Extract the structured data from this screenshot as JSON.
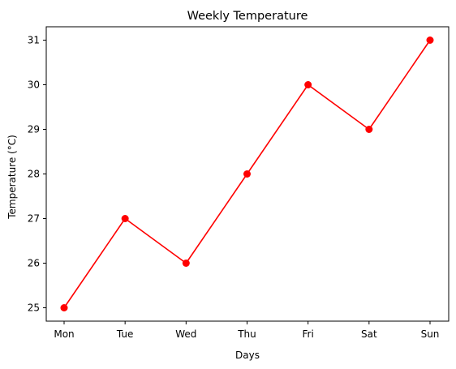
{
  "chart_data": {
    "type": "line",
    "title": "Weekly Temperature",
    "xlabel": "Days",
    "ylabel": "Temperature (°C)",
    "categories": [
      "Mon",
      "Tue",
      "Wed",
      "Thu",
      "Fri",
      "Sat",
      "Sun"
    ],
    "series": [
      {
        "values": [
          25,
          27,
          26,
          28,
          30,
          29,
          31
        ],
        "color": "#ff0000",
        "marker": "circle"
      }
    ],
    "y_ticks": [
      25,
      26,
      27,
      28,
      29,
      30,
      31
    ],
    "ylim": [
      24.7,
      31.3
    ],
    "grid": false,
    "legend": "none"
  }
}
